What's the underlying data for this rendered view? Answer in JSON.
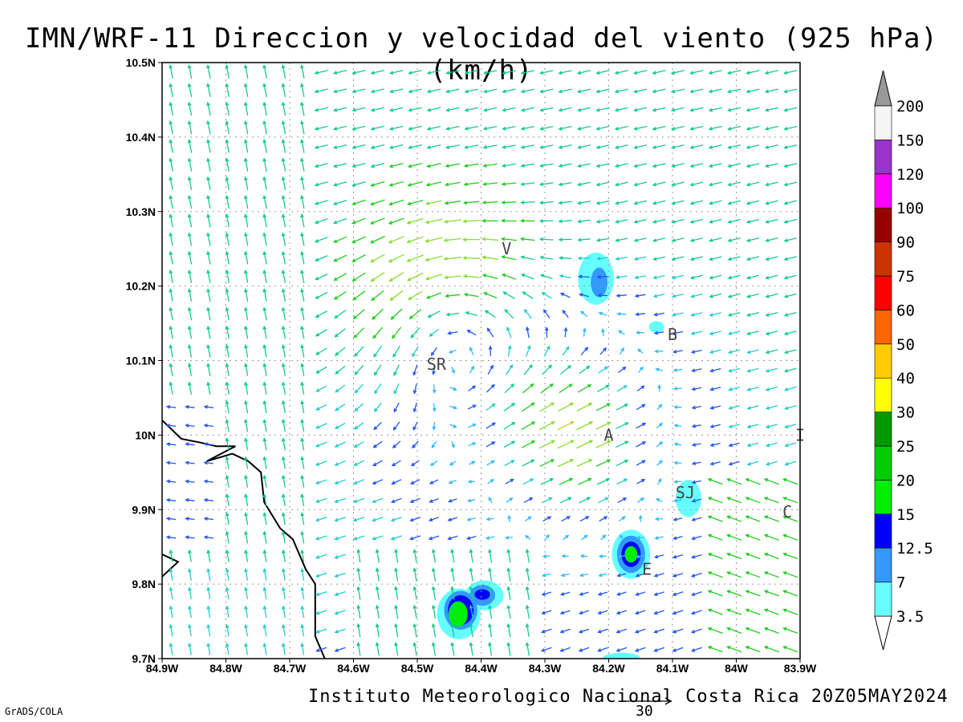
{
  "title": "IMN/WRF-11 Direccion y velocidad del viento (925 hPa)(km/h)",
  "footer": "Instituto Meteorologico Nacional Costa Rica 20Z05MAY2024",
  "grads_label": "GrADS/COLA",
  "reference_vector": {
    "value": "30"
  },
  "axes": {
    "lat_ticks": [
      "10.5N",
      "10.4N",
      "10.3N",
      "10.2N",
      "10.1N",
      "10N",
      "9.9N",
      "9.8N",
      "9.7N"
    ],
    "lon_ticks": [
      "84.9W",
      "84.8W",
      "84.7W",
      "84.6W",
      "84.5W",
      "84.4W",
      "84.3W",
      "84.2W",
      "84.1W",
      "84W",
      "83.9W"
    ],
    "lat_range": [
      9.7,
      10.5
    ],
    "lon_range": [
      -84.9,
      -83.9
    ]
  },
  "colorbar": {
    "levels": [
      "3.5",
      "7",
      "12.5",
      "15",
      "20",
      "25",
      "30",
      "40",
      "50",
      "60",
      "75",
      "90",
      "100",
      "120",
      "150",
      "200"
    ],
    "colors": [
      "#66ffff",
      "#3399ff",
      "#0000ff",
      "#00ee00",
      "#00cc00",
      "#009900",
      "#ffff00",
      "#ffcc00",
      "#ff6600",
      "#ff0000",
      "#cc3300",
      "#990000",
      "#ff00ff",
      "#9933cc",
      "#f5f5f5",
      "#999999"
    ]
  },
  "cities": [
    {
      "label": "V",
      "lat": 10.25,
      "lon": -84.36
    },
    {
      "label": "SR",
      "lat": 10.095,
      "lon": -84.47
    },
    {
      "label": "B",
      "lat": 10.135,
      "lon": -84.1
    },
    {
      "label": "A",
      "lat": 10.0,
      "lon": -84.2
    },
    {
      "label": "SJ",
      "lat": 9.923,
      "lon": -84.08
    },
    {
      "label": "C",
      "lat": 9.897,
      "lon": -83.92
    },
    {
      "label": "E",
      "lat": 9.82,
      "lon": -84.14
    },
    {
      "label": "I",
      "lat": 10.0,
      "lon": -83.9
    }
  ],
  "coastline": [
    [
      -84.9,
      10.02
    ],
    [
      -84.87,
      9.995
    ],
    [
      -84.84,
      9.99
    ],
    [
      -84.815,
      9.985
    ],
    [
      -84.785,
      9.985
    ],
    [
      -84.83,
      9.965
    ],
    [
      -84.79,
      9.975
    ],
    [
      -84.765,
      9.965
    ],
    [
      -84.745,
      9.95
    ],
    [
      -84.74,
      9.91
    ],
    [
      -84.715,
      9.875
    ],
    [
      -84.695,
      9.86
    ],
    [
      -84.675,
      9.82
    ],
    [
      -84.66,
      9.8
    ],
    [
      -84.66,
      9.75
    ],
    [
      -84.66,
      9.73
    ],
    [
      -84.645,
      9.7
    ]
  ],
  "coastline2": [
    [
      -84.9,
      9.81
    ],
    [
      -84.875,
      9.83
    ],
    [
      -84.9,
      9.84
    ]
  ],
  "shaded_areas": [
    {
      "lat": 10.21,
      "lon": -84.22,
      "rx": 0.028,
      "ry": 0.035,
      "level": 0
    },
    {
      "lat": 10.205,
      "lon": -84.215,
      "rx": 0.013,
      "ry": 0.02,
      "level": 1
    },
    {
      "lat": 10.145,
      "lon": -84.125,
      "rx": 0.012,
      "ry": 0.008,
      "level": 0
    },
    {
      "lat": 9.915,
      "lon": -84.075,
      "rx": 0.02,
      "ry": 0.025,
      "level": 0
    },
    {
      "lat": 9.84,
      "lon": -84.165,
      "rx": 0.03,
      "ry": 0.033,
      "level": 0
    },
    {
      "lat": 9.84,
      "lon": -84.165,
      "rx": 0.022,
      "ry": 0.025,
      "level": 1
    },
    {
      "lat": 9.84,
      "lon": -84.165,
      "rx": 0.015,
      "ry": 0.017,
      "level": 2
    },
    {
      "lat": 9.84,
      "lon": -84.165,
      "rx": 0.01,
      "ry": 0.011,
      "level": 3
    },
    {
      "lat": 9.76,
      "lon": -84.435,
      "rx": 0.034,
      "ry": 0.034,
      "level": 0
    },
    {
      "lat": 9.785,
      "lon": -84.395,
      "rx": 0.03,
      "ry": 0.02,
      "level": 0
    },
    {
      "lat": 9.765,
      "lon": -84.432,
      "rx": 0.026,
      "ry": 0.026,
      "level": 1
    },
    {
      "lat": 9.785,
      "lon": -84.398,
      "rx": 0.02,
      "ry": 0.014,
      "level": 1
    },
    {
      "lat": 9.765,
      "lon": -84.432,
      "rx": 0.02,
      "ry": 0.02,
      "level": 2
    },
    {
      "lat": 9.786,
      "lon": -84.398,
      "rx": 0.012,
      "ry": 0.007,
      "level": 2
    },
    {
      "lat": 9.76,
      "lon": -84.436,
      "rx": 0.015,
      "ry": 0.017,
      "level": 3
    },
    {
      "lat": 9.7,
      "lon": -84.18,
      "rx": 0.03,
      "ry": 0.008,
      "level": 0
    }
  ]
}
